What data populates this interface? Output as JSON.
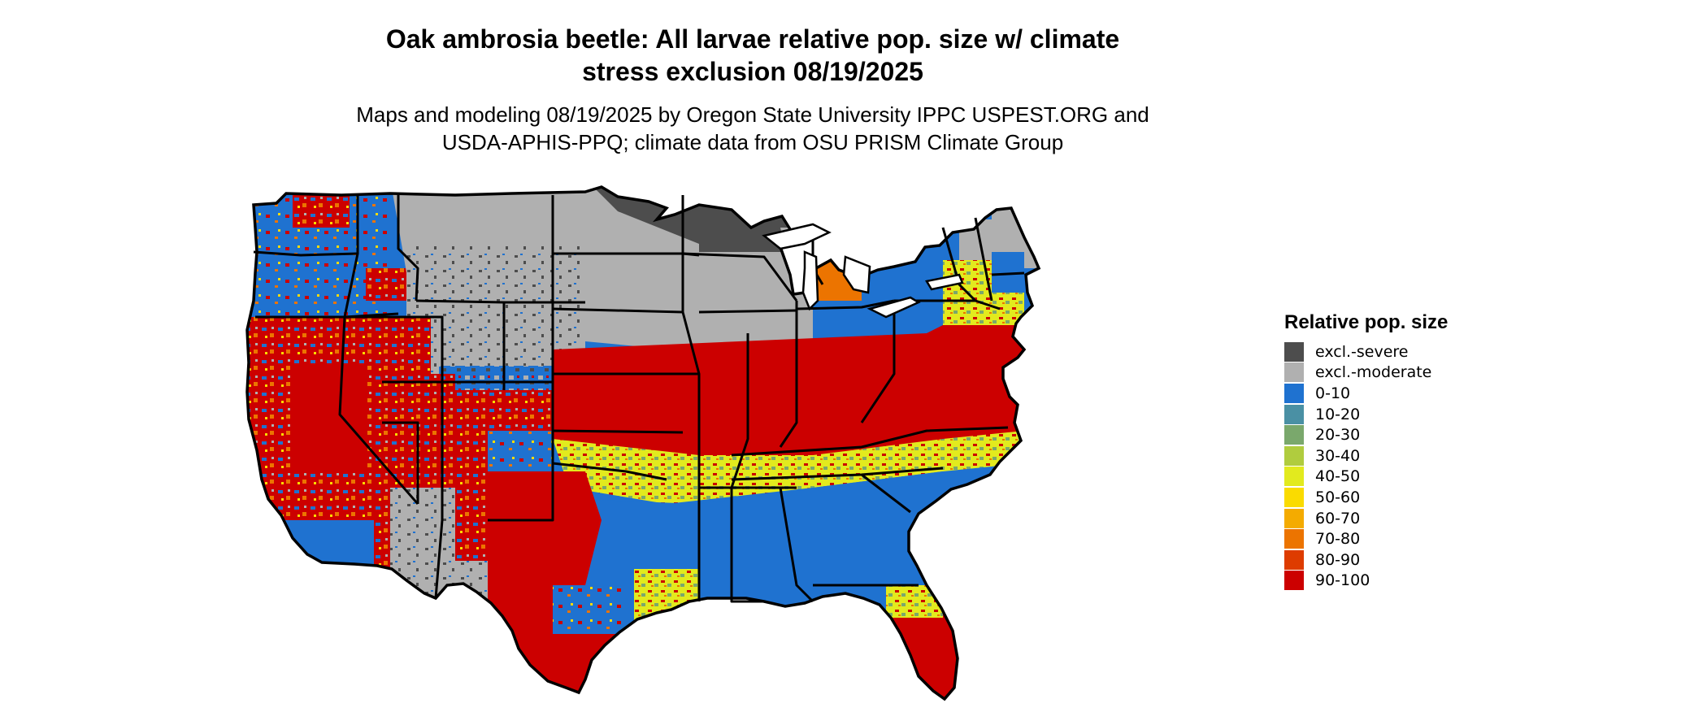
{
  "title": {
    "line1": "Oak ambrosia beetle: All larvae relative pop. size w/ climate",
    "line2": "stress exclusion 08/19/2025"
  },
  "subtitle": {
    "line1": "Maps and modeling 08/19/2025 by Oregon State University IPPC USPEST.ORG and",
    "line2": "USDA-APHIS-PPQ; climate data from OSU PRISM Climate Group"
  },
  "legend": {
    "title": "Relative pop. size",
    "items": [
      {
        "label": "excl.-severe",
        "color": "#4d4d4d"
      },
      {
        "label": "excl.-moderate",
        "color": "#b0b0b0"
      },
      {
        "label": "0-10",
        "color": "#1f72d0"
      },
      {
        "label": "10-20",
        "color": "#4a90a4"
      },
      {
        "label": "20-30",
        "color": "#7aa86c"
      },
      {
        "label": "30-40",
        "color": "#b0cc3e"
      },
      {
        "label": "40-50",
        "color": "#e2ea1e"
      },
      {
        "label": "50-60",
        "color": "#fadb00"
      },
      {
        "label": "60-70",
        "color": "#f4ab00"
      },
      {
        "label": "70-80",
        "color": "#ec7400"
      },
      {
        "label": "80-90",
        "color": "#de3c00"
      },
      {
        "label": "90-100",
        "color": "#cc0000"
      }
    ]
  }
}
